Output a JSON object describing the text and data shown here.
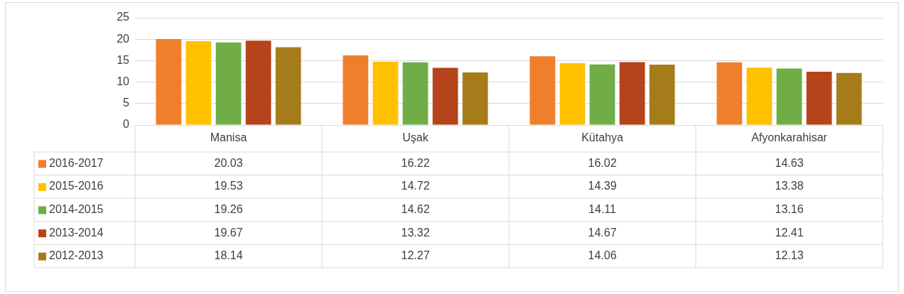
{
  "chart_data": {
    "type": "bar",
    "categories": [
      "Manisa",
      "Uşak",
      "Kütahya",
      "Afyonkarahisar"
    ],
    "series": [
      {
        "name": "2016-2017",
        "color": "#f07f2c",
        "values": [
          20.03,
          16.22,
          16.02,
          14.63
        ]
      },
      {
        "name": "2015-2016",
        "color": "#ffc000",
        "values": [
          19.53,
          14.72,
          14.39,
          13.38
        ]
      },
      {
        "name": "2014-2015",
        "color": "#70ad47",
        "values": [
          19.26,
          14.62,
          14.11,
          13.16
        ]
      },
      {
        "name": "2013-2014",
        "color": "#b5441a",
        "values": [
          19.67,
          13.32,
          14.67,
          12.41
        ]
      },
      {
        "name": "2012-2013",
        "color": "#a67c1a",
        "values": [
          18.14,
          12.27,
          14.06,
          12.13
        ]
      }
    ],
    "ylim": [
      0,
      25
    ],
    "yticks": [
      0,
      5,
      10,
      15,
      20,
      25
    ],
    "grid": "y",
    "legend": "bottom",
    "data_labels": true
  }
}
